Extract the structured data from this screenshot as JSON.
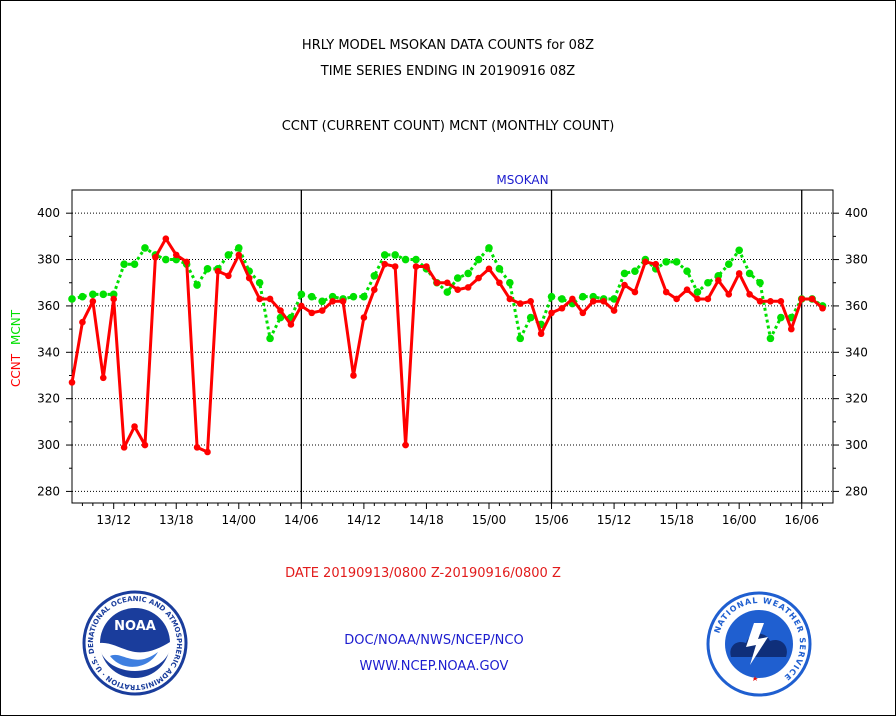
{
  "header": {
    "title_line1": "HRLY MODEL MSOKAN DATA COUNTS for 08Z",
    "title_line2": "TIME SERIES ENDING IN 20190916 08Z",
    "subtitle": "CCNT (CURRENT COUNT) MCNT (MONTHLY COUNT)"
  },
  "chart_data": {
    "type": "line",
    "title": "MSOKAN",
    "ylabel_ccnt": "CCNT",
    "ylabel_mcnt": "MCNT",
    "xlabel": "DATE 20190913/0800 Z-20190916/0800 Z",
    "ylim": [
      275,
      410
    ],
    "xlim": [
      0,
      73
    ],
    "yticks": [
      280,
      300,
      320,
      340,
      360,
      380,
      400
    ],
    "xticks": [
      {
        "x": 4,
        "label": "13/12"
      },
      {
        "x": 10,
        "label": "13/18"
      },
      {
        "x": 16,
        "label": "14/00"
      },
      {
        "x": 22,
        "label": "14/06"
      },
      {
        "x": 28,
        "label": "14/12"
      },
      {
        "x": 34,
        "label": "14/18"
      },
      {
        "x": 40,
        "label": "15/00"
      },
      {
        "x": 46,
        "label": "15/06"
      },
      {
        "x": 52,
        "label": "15/12"
      },
      {
        "x": 58,
        "label": "15/18"
      },
      {
        "x": 64,
        "label": "16/00"
      },
      {
        "x": 70,
        "label": "16/06"
      }
    ],
    "day_boundaries": [
      22,
      46,
      70
    ],
    "grid": true,
    "series": [
      {
        "name": "CCNT",
        "color": "#ff0000",
        "values": [
          327,
          353,
          362,
          329,
          363,
          299,
          308,
          300,
          381,
          389,
          382,
          379,
          299,
          297,
          375,
          373,
          382,
          372,
          363,
          363,
          358,
          352,
          360,
          357,
          358,
          362,
          362,
          330,
          355,
          367,
          378,
          377,
          300,
          377,
          377,
          370,
          370,
          367,
          368,
          372,
          376,
          370,
          363,
          361,
          362,
          348,
          357,
          359,
          363,
          357,
          362,
          362,
          358,
          369,
          366,
          379,
          378,
          366,
          363,
          367,
          363,
          363,
          371,
          365,
          374,
          365,
          362,
          362,
          362,
          350,
          363,
          363,
          359
        ]
      },
      {
        "name": "MCNT",
        "color": "#00e000",
        "values": [
          363,
          364,
          365,
          365,
          365,
          378,
          378,
          385,
          382,
          380,
          380,
          378,
          369,
          376,
          376,
          382,
          385,
          375,
          370,
          346,
          355,
          355,
          365,
          364,
          362,
          364,
          363,
          364,
          364,
          373,
          382,
          382,
          380,
          380,
          376,
          370,
          366,
          372,
          374,
          380,
          385,
          376,
          370,
          346,
          355,
          352,
          364,
          363,
          361,
          364,
          364,
          363,
          363,
          374,
          375,
          380,
          376,
          379,
          379,
          375,
          366,
          370,
          373,
          378,
          384,
          374,
          370,
          346,
          355,
          355,
          363,
          363,
          360
        ]
      }
    ]
  },
  "footer": {
    "org_link": "DOC/NOAA/NWS/NCEP/NCO",
    "web_link": "WWW.NCEP.NOAA.GOV"
  },
  "logos": {
    "noaa_badge": "NOAA",
    "noaa_ring_text": "NATIONAL OCEANIC AND ATMOSPHERIC ADMINISTRATION · U.S. DEPARTMENT OF COMMERCE ·",
    "nws_ring_text": "NATIONAL WEATHER SERVICE"
  },
  "colors": {
    "ccnt": "#ff0000",
    "mcnt": "#00e000",
    "link": "#1c1ccf",
    "date": "#e21b1b",
    "noaa_blue": "#1a3d9c",
    "nws_blue": "#1f5fd0"
  }
}
